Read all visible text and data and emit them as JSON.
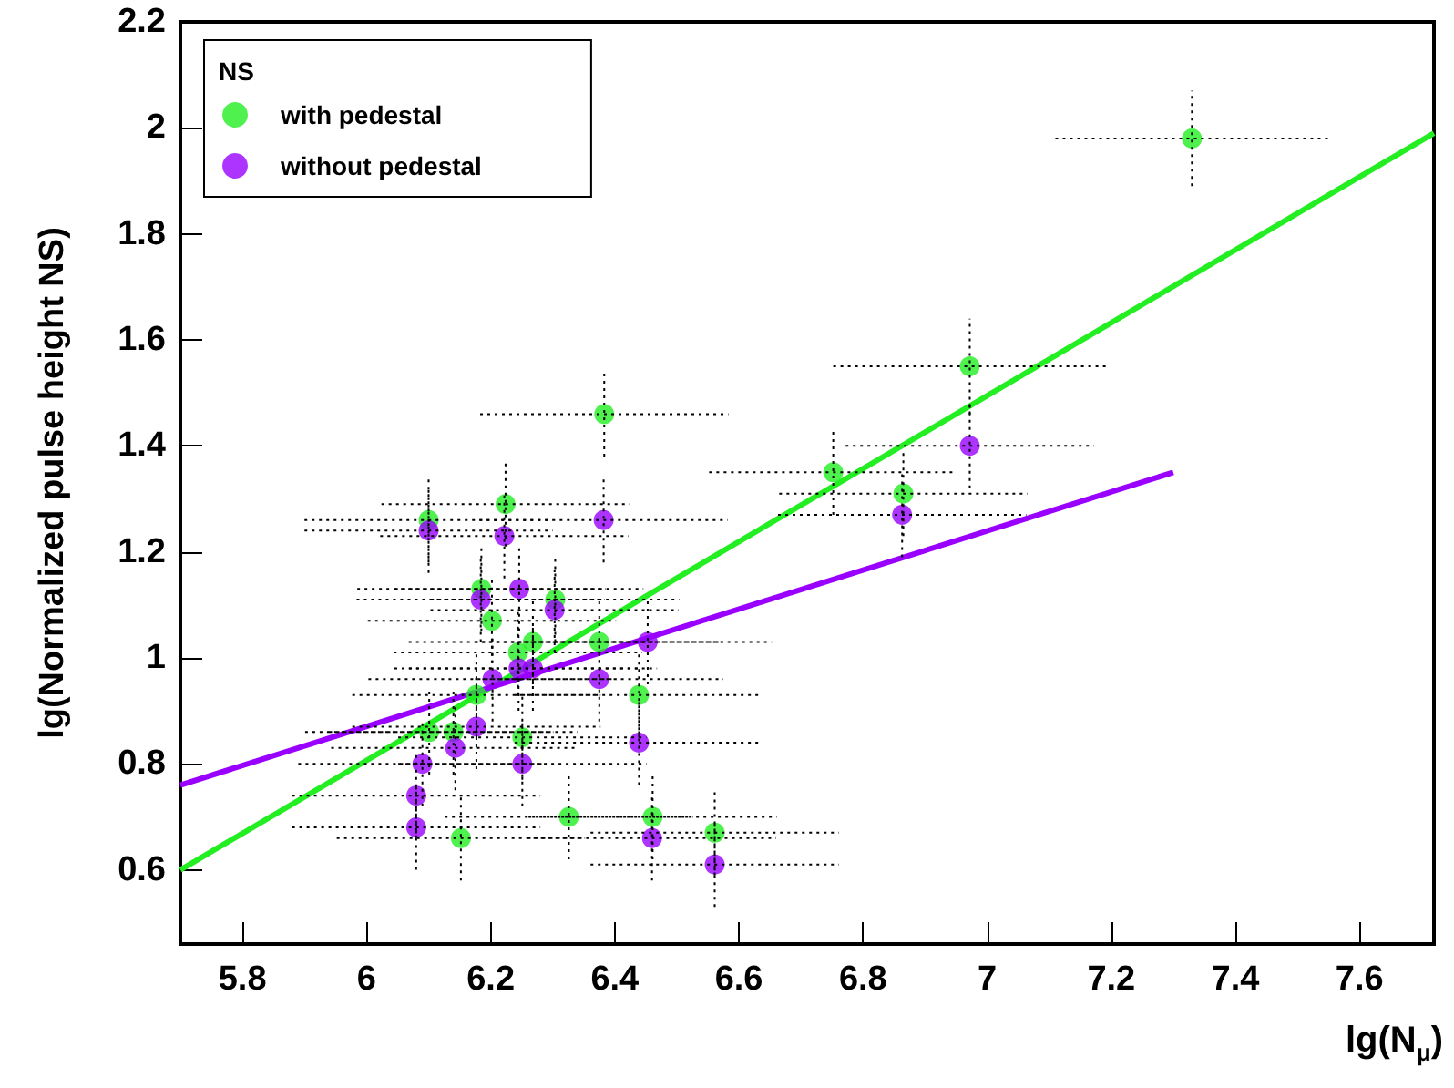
{
  "chart_data": {
    "type": "scatter",
    "xlabel": "lg(N$_{μ}$)",
    "ylabel": "lg(Normalized pulse height NS)",
    "legend_title": "NS",
    "legend": "top left",
    "grid": false,
    "xlim": [
      5.7,
      7.72
    ],
    "xticks": [
      5.8,
      6,
      6.2,
      6.4,
      6.6,
      6.8,
      7,
      7.2,
      7.4,
      7.6
    ],
    "ylim": [
      0.46,
      2.2
    ],
    "yticks": [
      0.6,
      0.8,
      1,
      1.2,
      1.4,
      1.6,
      1.8,
      2,
      2.2
    ],
    "series": [
      {
        "name": "with pedestal",
        "marker": "circle",
        "color": "#22ee22",
        "x": [
          6.383,
          6.224,
          6.1,
          6.185,
          6.304,
          6.202,
          6.268,
          6.244,
          6.375,
          6.439,
          6.177,
          6.101,
          6.14,
          6.251,
          6.326,
          6.461,
          6.152,
          6.561,
          6.752,
          6.865,
          6.972,
          7.33
        ],
        "values": [
          1.46,
          1.29,
          1.26,
          1.13,
          1.11,
          1.07,
          1.03,
          1.01,
          1.03,
          0.93,
          0.93,
          0.86,
          0.86,
          0.85,
          0.7,
          0.7,
          0.66,
          0.67,
          1.35,
          1.31,
          1.55,
          1.98
        ],
        "xerrors": [
          0.2,
          0.2,
          0.2,
          0.2,
          0.2,
          0.2,
          0.2,
          0.2,
          0.2,
          0.2,
          0.2,
          0.2,
          0.2,
          0.2,
          0.2,
          0.2,
          0.2,
          0.2,
          0.2,
          0.2,
          0.22,
          0.22
        ],
        "errors": [
          0.08,
          0.08,
          0.08,
          0.08,
          0.08,
          0.08,
          0.08,
          0.08,
          0.08,
          0.08,
          0.08,
          0.08,
          0.08,
          0.08,
          0.08,
          0.08,
          0.08,
          0.08,
          0.08,
          0.08,
          0.09,
          0.09
        ]
      },
      {
        "name": "without pedestal",
        "marker": "circle",
        "color": "#9900ff",
        "x": [
          6.382,
          6.1,
          6.222,
          6.246,
          6.184,
          6.303,
          6.453,
          6.245,
          6.268,
          6.203,
          6.375,
          6.177,
          6.143,
          6.09,
          6.251,
          6.439,
          6.08,
          6.08,
          6.46,
          6.561,
          6.972,
          6.863
        ],
        "values": [
          1.26,
          1.24,
          1.23,
          1.13,
          1.11,
          1.09,
          1.03,
          0.98,
          0.98,
          0.96,
          0.96,
          0.87,
          0.83,
          0.8,
          0.8,
          0.84,
          0.74,
          0.68,
          0.66,
          0.61,
          1.4,
          1.27
        ],
        "xerrors": [
          0.2,
          0.2,
          0.2,
          0.2,
          0.2,
          0.2,
          0.2,
          0.2,
          0.2,
          0.2,
          0.2,
          0.2,
          0.2,
          0.2,
          0.2,
          0.2,
          0.2,
          0.2,
          0.2,
          0.2,
          0.2,
          0.2
        ],
        "errors": [
          0.08,
          0.08,
          0.08,
          0.08,
          0.08,
          0.08,
          0.08,
          0.08,
          0.08,
          0.08,
          0.08,
          0.08,
          0.08,
          0.08,
          0.08,
          0.08,
          0.08,
          0.08,
          0.08,
          0.08,
          0.08,
          0.08
        ]
      },
      {
        "type": "line",
        "color": "#22ee22",
        "x": [
          5.7,
          7.72
        ],
        "values": [
          0.6,
          1.99
        ]
      },
      {
        "type": "line",
        "color": "#9900ff",
        "x": [
          5.7,
          7.3
        ],
        "values": [
          0.76,
          1.35
        ]
      }
    ]
  }
}
